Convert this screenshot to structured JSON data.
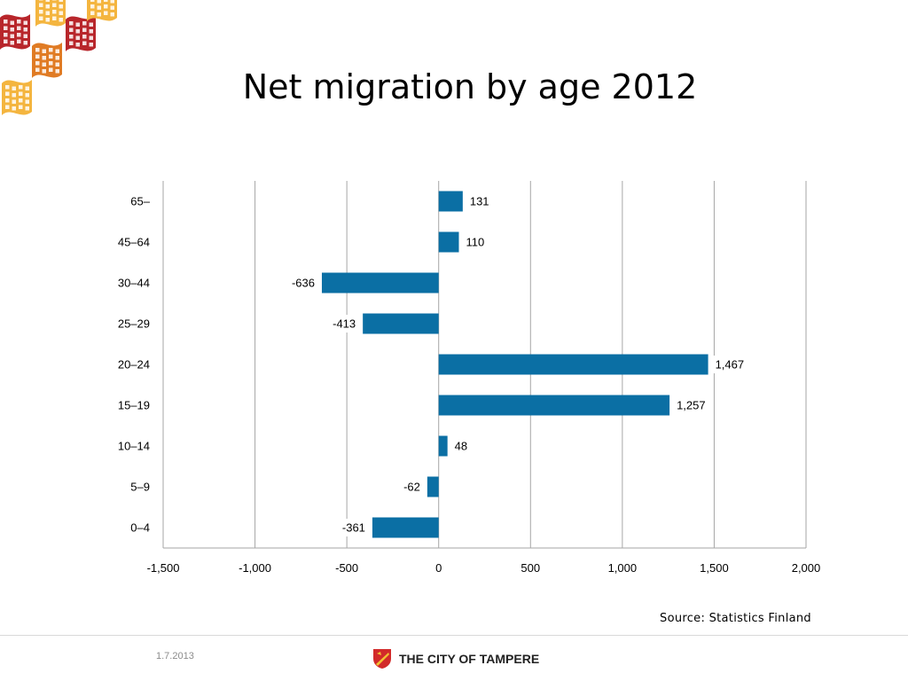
{
  "page": {
    "source": "Source: Statistics Finland",
    "date": "1.7.2013",
    "city": "THE CITY OF TAMPERE"
  },
  "colors": {
    "bar": "#0b6fa4",
    "grid": "#a6a6a6",
    "logo_dark": "#b8262b",
    "logo_mid": "#e07b24",
    "logo_light": "#f4b53f"
  },
  "icons": {
    "logo": "tiled-wave-logo-icon",
    "crest": "tampere-crest-icon"
  },
  "chart_data": {
    "type": "bar",
    "orientation": "horizontal",
    "title": "Net migration by age 2012",
    "categories": [
      "65–",
      "45–64",
      "30–44",
      "25–29",
      "20–24",
      "15–19",
      "10–14",
      "5–9",
      "0–4"
    ],
    "values": [
      131,
      110,
      -636,
      -413,
      1467,
      1257,
      48,
      -62,
      -361
    ],
    "data_labels": [
      "131",
      "110",
      "-636",
      "-413",
      "1,467",
      "1,257",
      "48",
      "-62",
      "-361"
    ],
    "xlim": [
      -1500,
      2000
    ],
    "xticks": [
      -1500,
      -1000,
      -500,
      0,
      500,
      1000,
      1500,
      2000
    ],
    "xtick_labels": [
      "-1,500",
      "-1,000",
      "-500",
      "0",
      "500",
      "1,000",
      "1,500",
      "2,000"
    ],
    "grid": "vertical",
    "legend": "none"
  }
}
